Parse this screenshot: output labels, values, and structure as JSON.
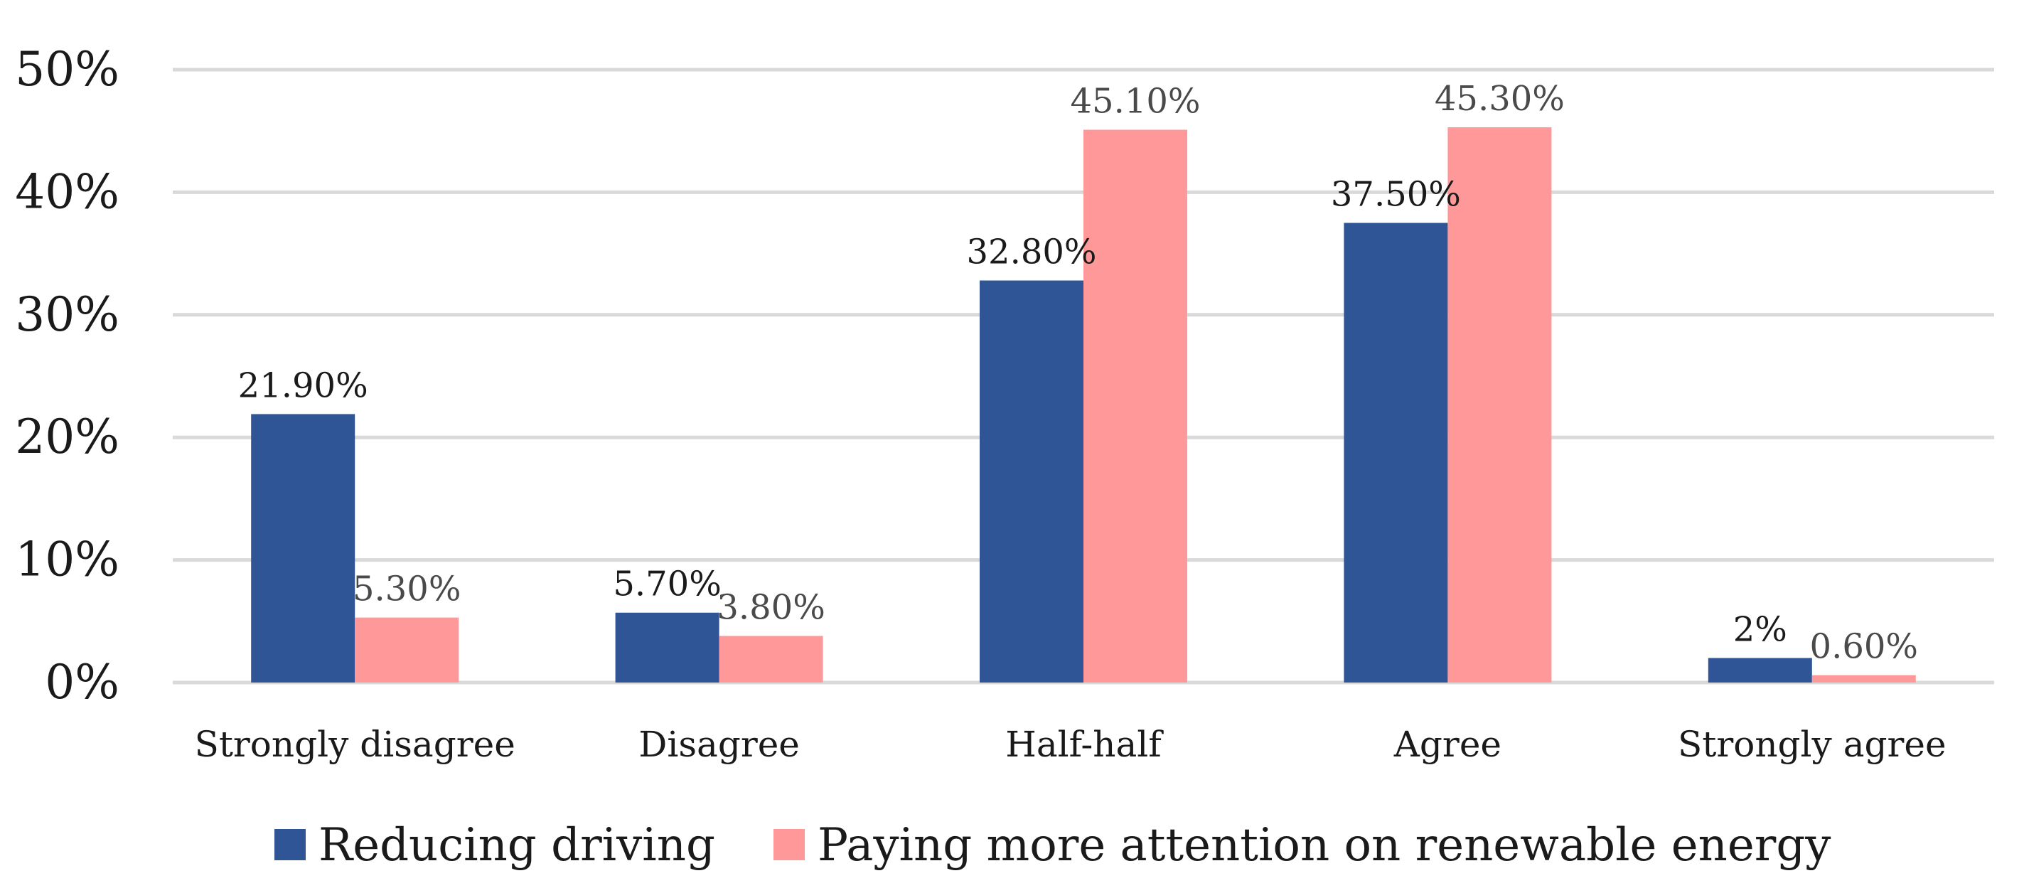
{
  "chart_data": {
    "type": "bar",
    "title": "",
    "xlabel": "",
    "ylabel": "",
    "categories": [
      "Strongly disagree",
      "Disagree",
      "Half-half",
      "Agree",
      "Strongly agree"
    ],
    "series": [
      {
        "name": "Reducing driving",
        "color": "#2f5597",
        "values": [
          21.9,
          5.7,
          32.8,
          37.5,
          2
        ],
        "labels": [
          "21.90%",
          "5.70%",
          "32.80%",
          "37.50%",
          "2%"
        ]
      },
      {
        "name": "Paying more attention on renewable energy",
        "color": "#ff9999",
        "values": [
          5.3,
          3.8,
          45.1,
          45.3,
          0.6
        ],
        "labels": [
          "5.30%",
          "3.80%",
          "45.10%",
          "45.30%",
          "0.60%"
        ]
      }
    ],
    "ylim": [
      0,
      50
    ],
    "yticks": [
      0,
      10,
      20,
      30,
      40,
      50
    ],
    "ytick_labels": [
      "0%",
      "10%",
      "20%",
      "30%",
      "40%",
      "50%"
    ],
    "grid": true,
    "legend_position": "bottom-center"
  }
}
